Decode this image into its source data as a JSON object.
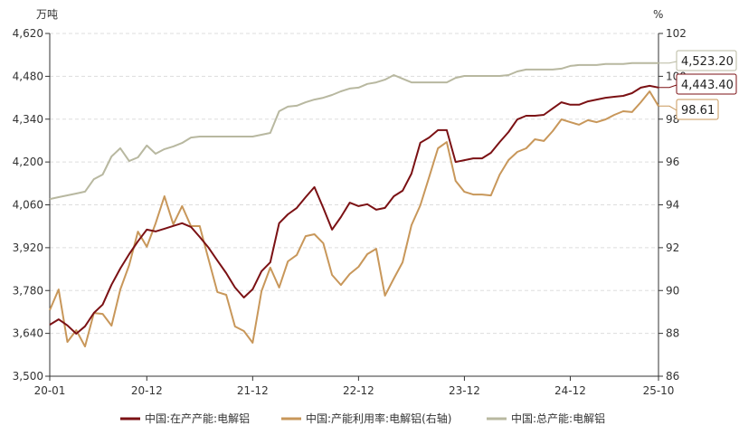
{
  "chart_data": {
    "type": "line",
    "left_unit": "万吨",
    "right_unit": "%",
    "ylim_left": [
      3500,
      4620
    ],
    "ylim_right": [
      86,
      102
    ],
    "yticks_left": [
      "3,500",
      "3,640",
      "3,780",
      "3,920",
      "4,060",
      "4,200",
      "4,340",
      "4,480",
      "4,620"
    ],
    "yticks_right": [
      "86",
      "88",
      "90",
      "92",
      "94",
      "96",
      "98",
      "100",
      "102"
    ],
    "xticks": [
      "20-01",
      "20-12",
      "21-12",
      "22-12",
      "23-12",
      "24-12",
      "25-10"
    ],
    "grid": true,
    "legend_position": "bottom",
    "categories": [
      "20-01",
      "20-02",
      "20-03",
      "20-04",
      "20-05",
      "20-06",
      "20-07",
      "20-08",
      "20-09",
      "20-10",
      "20-11",
      "20-12",
      "21-01",
      "21-02",
      "21-03",
      "21-04",
      "21-05",
      "21-06",
      "21-07",
      "21-08",
      "21-09",
      "21-10",
      "21-11",
      "21-12",
      "22-01",
      "22-02",
      "22-03",
      "22-04",
      "22-05",
      "22-06",
      "22-07",
      "22-08",
      "22-09",
      "22-10",
      "22-11",
      "22-12",
      "23-01",
      "23-02",
      "23-03",
      "23-04",
      "23-05",
      "23-06",
      "23-07",
      "23-08",
      "23-09",
      "23-10",
      "23-11",
      "23-12",
      "24-01",
      "24-02",
      "24-03",
      "24-04",
      "24-05",
      "24-06",
      "24-07",
      "24-08",
      "24-09",
      "24-10",
      "24-11",
      "24-12",
      "25-01",
      "25-02",
      "25-03",
      "25-04",
      "25-05",
      "25-06",
      "25-07",
      "25-08",
      "25-09",
      "25-10"
    ],
    "series": [
      {
        "name": "中国:在产产能:电解铝",
        "axis": "left",
        "color": "#7b1114",
        "last_label": "4,443.40",
        "values": [
          3668,
          3686,
          3666,
          3639,
          3663,
          3707,
          3734,
          3799,
          3852,
          3899,
          3941,
          3979,
          3973,
          3982,
          3991,
          4000,
          3988,
          3955,
          3920,
          3878,
          3837,
          3790,
          3757,
          3784,
          3843,
          3872,
          4000,
          4029,
          4050,
          4085,
          4118,
          4050,
          3979,
          4020,
          4067,
          4056,
          4062,
          4044,
          4050,
          4088,
          4106,
          4162,
          4263,
          4280,
          4304,
          4304,
          4200,
          4206,
          4212,
          4212,
          4230,
          4265,
          4298,
          4339,
          4351,
          4351,
          4354,
          4375,
          4395,
          4387,
          4387,
          4398,
          4404,
          4410,
          4413,
          4416,
          4425,
          4443,
          4449,
          4443.4
        ]
      },
      {
        "name": "中国:产能利用率:电解铝(右轴)",
        "axis": "right",
        "color": "#c8975a",
        "last_label": "98.61",
        "values": [
          89.08,
          90.05,
          87.6,
          88.15,
          87.39,
          88.95,
          88.91,
          88.36,
          90.05,
          91.19,
          92.75,
          92.04,
          93.13,
          94.4,
          93.09,
          93.94,
          93.01,
          93.01,
          91.45,
          89.93,
          89.8,
          88.32,
          88.11,
          87.56,
          89.97,
          91.07,
          90.14,
          91.36,
          91.66,
          92.54,
          92.63,
          92.21,
          90.73,
          90.26,
          90.77,
          91.11,
          91.7,
          91.95,
          89.76,
          90.56,
          91.32,
          93.05,
          93.98,
          95.29,
          96.64,
          96.93,
          95.12,
          94.61,
          94.48,
          94.48,
          94.44,
          95.41,
          96.09,
          96.47,
          96.64,
          97.06,
          96.98,
          97.44,
          97.99,
          97.86,
          97.74,
          97.95,
          97.86,
          97.99,
          98.2,
          98.37,
          98.33,
          98.79,
          99.3,
          98.61
        ]
      },
      {
        "name": "中国:总产能:电解铝",
        "axis": "left",
        "color": "#b8b8a0",
        "last_label": "4,523.20",
        "values": [
          4079,
          4085,
          4091,
          4097,
          4103,
          4144,
          4159,
          4218,
          4245,
          4203,
          4215,
          4254,
          4227,
          4242,
          4251,
          4262,
          4280,
          4283,
          4283,
          4283,
          4283,
          4283,
          4283,
          4283,
          4289,
          4295,
          4366,
          4381,
          4384,
          4395,
          4404,
          4410,
          4419,
          4431,
          4440,
          4443,
          4455,
          4460,
          4469,
          4484,
          4472,
          4460,
          4460,
          4460,
          4460,
          4460,
          4475,
          4481,
          4481,
          4481,
          4481,
          4481,
          4484,
          4496,
          4502,
          4502,
          4502,
          4502,
          4505,
          4514,
          4517,
          4517,
          4517,
          4520,
          4520,
          4520,
          4523.2,
          4523.2,
          4523.2,
          4523.2
        ]
      }
    ]
  }
}
